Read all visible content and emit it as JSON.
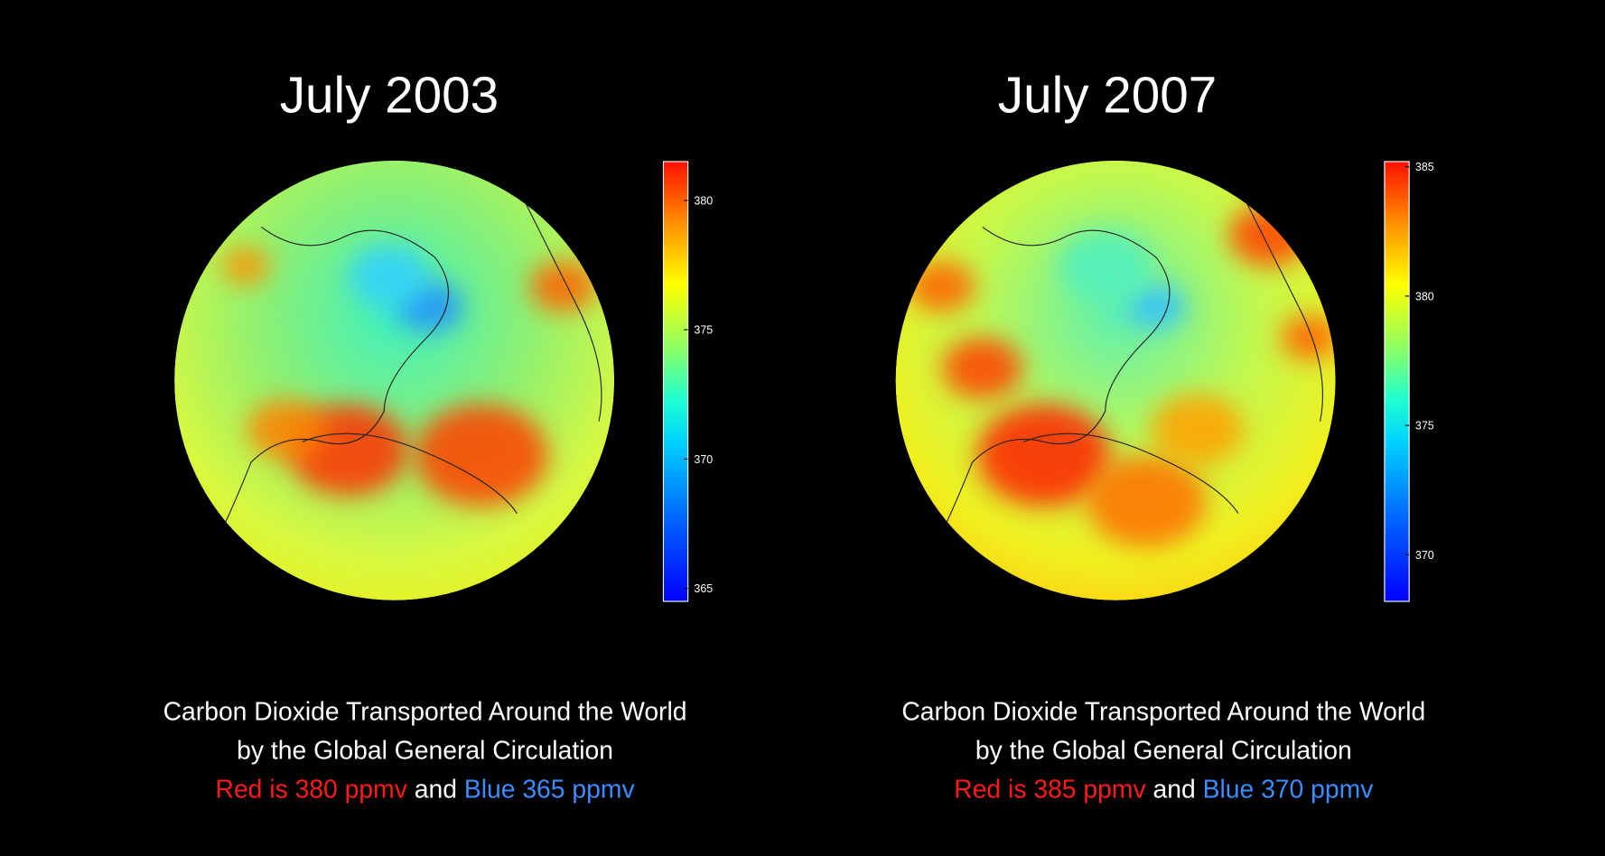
{
  "panels": [
    {
      "title": "July 2003",
      "colorbar": {
        "range": [
          364.5,
          381.5
        ],
        "ticks": [
          365,
          370,
          375,
          380
        ]
      },
      "caption": {
        "lines": [
          "Carbon Dioxide Transported Around the World",
          "by the Global General Circulation"
        ],
        "legend": [
          {
            "text": "Red is 380 ppmv",
            "color": "#ff1a1a"
          },
          {
            "text": "and",
            "color": "#ffffff"
          },
          {
            "text": "Blue 365 ppmv",
            "color": "#3a8cff"
          }
        ]
      }
    },
    {
      "title": "July 2007",
      "colorbar": {
        "range": [
          368.2,
          385.2
        ],
        "ticks": [
          370,
          375,
          380,
          385
        ]
      },
      "caption": {
        "lines": [
          "Carbon Dioxide Transported Around the World",
          "by the Global General Circulation"
        ],
        "legend": [
          {
            "text": "Red is 385 ppmv",
            "color": "#ff1a1a"
          },
          {
            "text": "and",
            "color": "#ffffff"
          },
          {
            "text": "Blue 370 ppmv",
            "color": "#3a8cff"
          }
        ]
      }
    }
  ]
}
